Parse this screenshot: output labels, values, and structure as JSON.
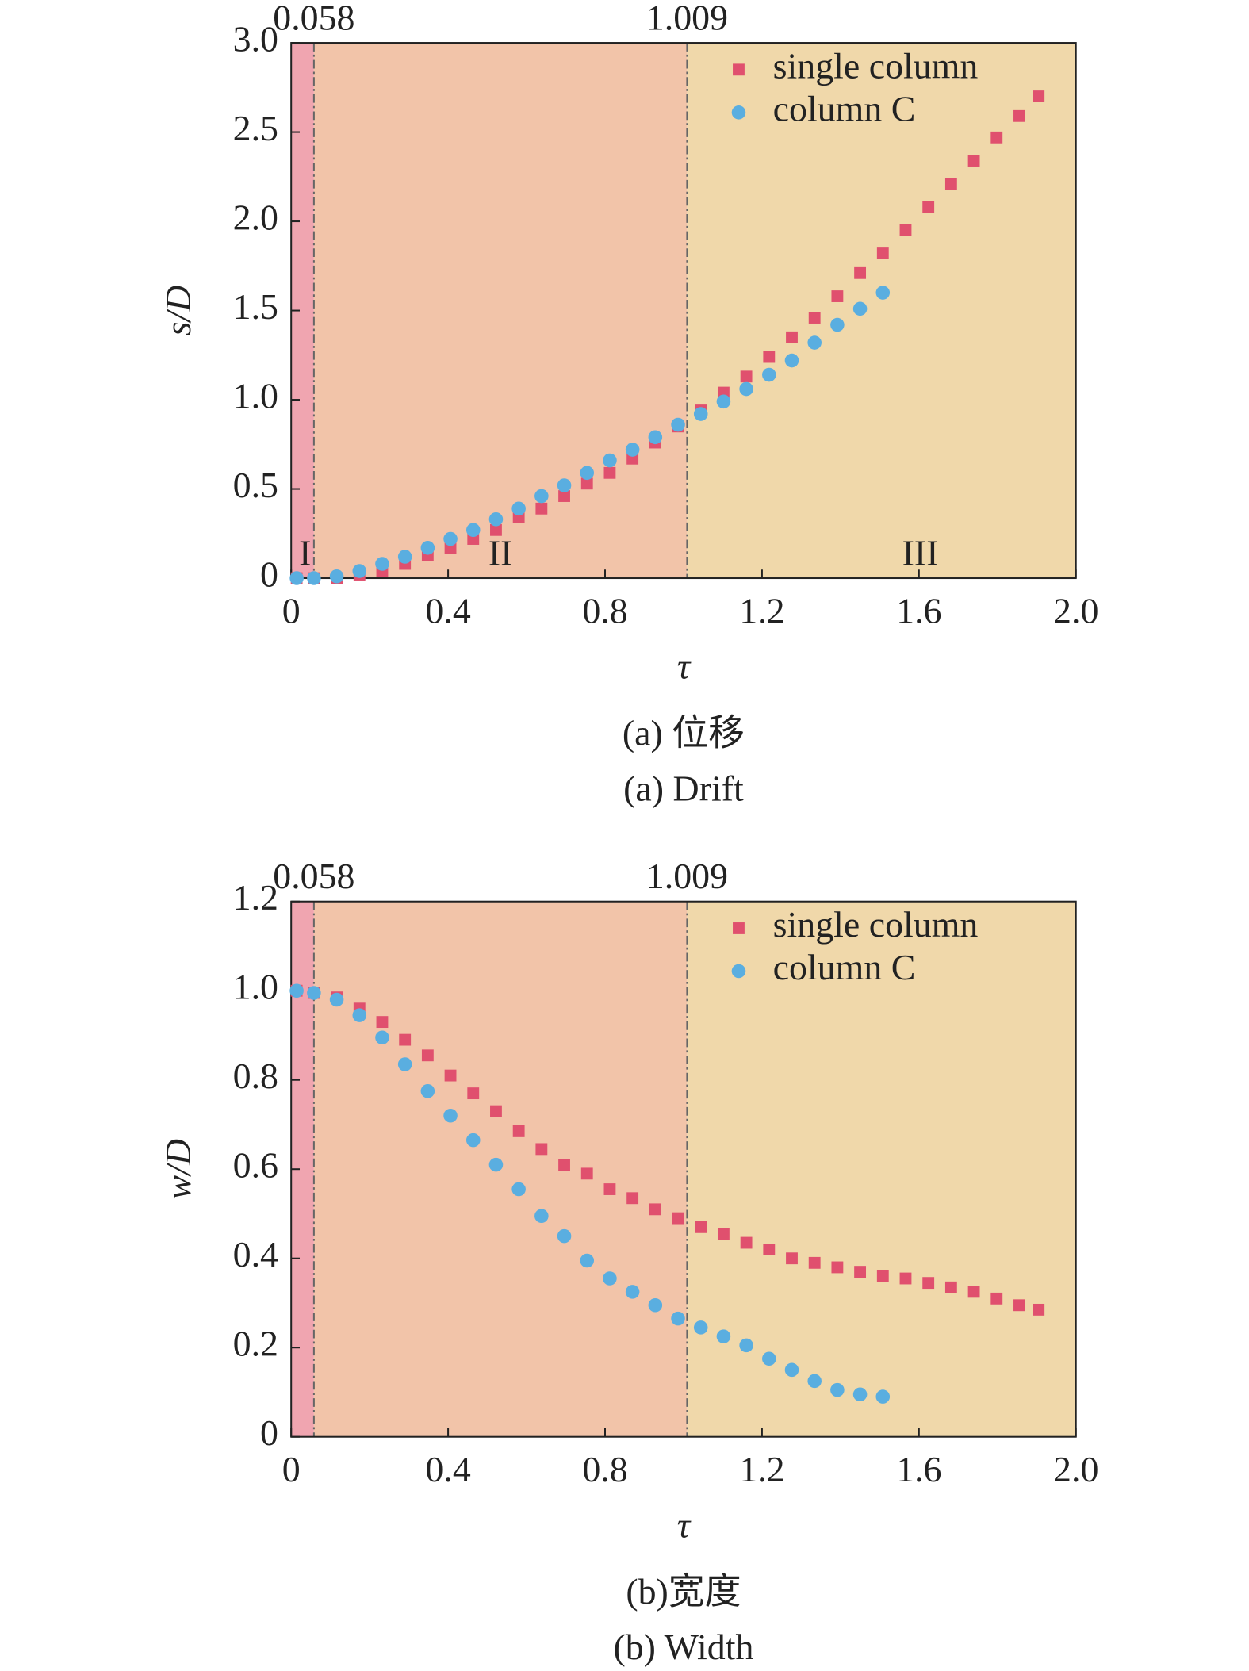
{
  "chart_data": [
    {
      "type": "scatter",
      "annotations": [
        "0.058",
        "1.009"
      ],
      "regions": {
        "edges": [
          0.058,
          1.009
        ],
        "labels": [
          "I",
          "II",
          "III"
        ],
        "colors": [
          "#f0a5b0",
          "#f2c4a9",
          "#f0d8aa"
        ]
      },
      "xlabel": "τ",
      "ylabel": "s/D",
      "xlim": [
        0,
        2
      ],
      "xticks": [
        0,
        0.4,
        0.8,
        1.2,
        1.6,
        {
          "value": 2,
          "label": "2.0"
        }
      ],
      "ylim": [
        0,
        3
      ],
      "yticks": [
        0,
        0.5,
        {
          "value": 1,
          "label": "1.0"
        },
        1.5,
        {
          "value": 2,
          "label": "2.0"
        },
        2.5,
        {
          "value": 3,
          "label": "3.0"
        }
      ],
      "legend": "top-right",
      "series": [
        {
          "name": "single column",
          "marker": "square",
          "color": "#e0506e",
          "x": [
            0.014,
            0.058,
            0.116,
            0.174,
            0.232,
            0.29,
            0.348,
            0.406,
            0.464,
            0.522,
            0.58,
            0.638,
            0.696,
            0.754,
            0.812,
            0.87,
            0.928,
            0.986,
            1.044,
            1.102,
            1.16,
            1.218,
            1.276,
            1.334,
            1.392,
            1.45,
            1.508,
            1.566,
            1.624,
            1.682,
            1.74,
            1.798,
            1.856,
            1.905
          ],
          "values": [
            0,
            0,
            0,
            0.02,
            0.04,
            0.08,
            0.13,
            0.17,
            0.22,
            0.27,
            0.34,
            0.39,
            0.46,
            0.53,
            0.59,
            0.67,
            0.76,
            0.85,
            0.94,
            1.04,
            1.13,
            1.24,
            1.35,
            1.46,
            1.58,
            1.71,
            1.82,
            1.95,
            2.08,
            2.21,
            2.34,
            2.47,
            2.59,
            2.7
          ]
        },
        {
          "name": "column C",
          "marker": "circle",
          "color": "#5aaee0",
          "x": [
            0.014,
            0.058,
            0.116,
            0.174,
            0.232,
            0.29,
            0.348,
            0.406,
            0.464,
            0.522,
            0.58,
            0.638,
            0.696,
            0.754,
            0.812,
            0.87,
            0.928,
            0.986,
            1.044,
            1.102,
            1.16,
            1.218,
            1.276,
            1.334,
            1.392,
            1.45,
            1.508
          ],
          "values": [
            0,
            0,
            0.01,
            0.04,
            0.08,
            0.12,
            0.17,
            0.22,
            0.27,
            0.33,
            0.39,
            0.46,
            0.52,
            0.59,
            0.66,
            0.72,
            0.79,
            0.86,
            0.92,
            0.99,
            1.06,
            1.14,
            1.22,
            1.32,
            1.42,
            1.51,
            1.6
          ]
        }
      ],
      "captions": [
        "(a) 位移",
        "(a) Drift"
      ]
    },
    {
      "type": "scatter",
      "annotations": [
        "0.058",
        "1.009"
      ],
      "regions": {
        "edges": [
          0.058,
          1.009
        ],
        "colors": [
          "#f0a5b0",
          "#f2c4a9",
          "#f0d8aa"
        ]
      },
      "xlabel": "τ",
      "ylabel": "w/D",
      "xlim": [
        0,
        2
      ],
      "xticks": [
        0,
        0.4,
        0.8,
        1.2,
        1.6,
        {
          "value": 2,
          "label": "2.0"
        }
      ],
      "ylim": [
        0,
        1.2
      ],
      "yticks": [
        0,
        0.2,
        0.4,
        0.6,
        0.8,
        {
          "value": 1,
          "label": "1.0"
        },
        1.2
      ],
      "legend": "top-right",
      "series": [
        {
          "name": "single column",
          "marker": "square",
          "color": "#e0506e",
          "x": [
            0.014,
            0.058,
            0.116,
            0.174,
            0.232,
            0.29,
            0.348,
            0.406,
            0.464,
            0.522,
            0.58,
            0.638,
            0.696,
            0.754,
            0.812,
            0.87,
            0.928,
            0.986,
            1.044,
            1.102,
            1.16,
            1.218,
            1.276,
            1.334,
            1.392,
            1.45,
            1.508,
            1.566,
            1.624,
            1.682,
            1.74,
            1.798,
            1.856,
            1.905
          ],
          "values": [
            1,
            0.995,
            0.985,
            0.96,
            0.93,
            0.89,
            0.855,
            0.81,
            0.77,
            0.73,
            0.685,
            0.645,
            0.61,
            0.59,
            0.555,
            0.535,
            0.51,
            0.49,
            0.47,
            0.455,
            0.435,
            0.42,
            0.4,
            0.39,
            0.38,
            0.37,
            0.36,
            0.355,
            0.345,
            0.335,
            0.325,
            0.31,
            0.295,
            0.285
          ]
        },
        {
          "name": "column C",
          "marker": "circle",
          "color": "#5aaee0",
          "x": [
            0.014,
            0.058,
            0.116,
            0.174,
            0.232,
            0.29,
            0.348,
            0.406,
            0.464,
            0.522,
            0.58,
            0.638,
            0.696,
            0.754,
            0.812,
            0.87,
            0.928,
            0.986,
            1.044,
            1.102,
            1.16,
            1.218,
            1.276,
            1.334,
            1.392,
            1.45,
            1.508
          ],
          "values": [
            1,
            0.995,
            0.98,
            0.945,
            0.895,
            0.835,
            0.775,
            0.72,
            0.665,
            0.61,
            0.555,
            0.495,
            0.45,
            0.395,
            0.355,
            0.325,
            0.295,
            0.265,
            0.245,
            0.225,
            0.205,
            0.175,
            0.15,
            0.125,
            0.105,
            0.095,
            0.09
          ]
        }
      ],
      "captions": [
        "(b)宽度",
        "(b) Width"
      ]
    }
  ]
}
